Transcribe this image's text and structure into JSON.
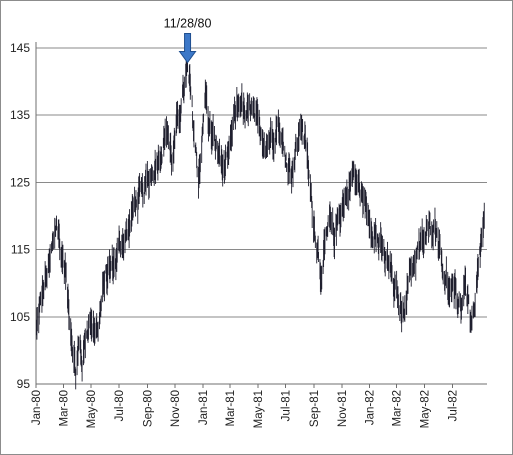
{
  "chart_data": {
    "type": "line",
    "style": "high-low bars",
    "series_color": "#1f1f2e",
    "annotation_color": "#3c78c8",
    "grid": true,
    "legend": "none",
    "y_ticks": [
      95,
      105,
      115,
      125,
      135,
      145
    ],
    "ylim": [
      95,
      145
    ],
    "x_ticks": [
      "Jan-80",
      "Mar-80",
      "May-80",
      "Jul-80",
      "Sep-80",
      "Nov-80",
      "Jan-81",
      "Mar-81",
      "May-81",
      "Jul-81",
      "Sep-81",
      "Nov-81",
      "Jan-82",
      "Mar-82",
      "May-82",
      "Jul-82"
    ],
    "x_range": [
      "1980-01-01",
      "1982-09-15"
    ],
    "annotations": [
      {
        "label": "11/28/80",
        "date": "1980-11-28",
        "value": 141.5
      }
    ],
    "points": [
      [
        "1980-01-02",
        103.0
      ],
      [
        "1980-01-10",
        106.5
      ],
      [
        "1980-01-20",
        110.0
      ],
      [
        "1980-02-01",
        113.0
      ],
      [
        "1980-02-10",
        117.0
      ],
      [
        "1980-02-15",
        119.5
      ],
      [
        "1980-02-25",
        114.5
      ],
      [
        "1980-03-05",
        112.0
      ],
      [
        "1980-03-10",
        108.0
      ],
      [
        "1980-03-15",
        105.0
      ],
      [
        "1980-03-22",
        100.5
      ],
      [
        "1980-03-28",
        96.5
      ],
      [
        "1980-04-05",
        101.0
      ],
      [
        "1980-04-12",
        98.0
      ],
      [
        "1980-04-20",
        103.0
      ],
      [
        "1980-05-01",
        104.5
      ],
      [
        "1980-05-15",
        103.0
      ],
      [
        "1980-06-01",
        111.0
      ],
      [
        "1980-06-20",
        113.0
      ],
      [
        "1980-07-05",
        116.0
      ],
      [
        "1980-07-20",
        117.5
      ],
      [
        "1980-08-05",
        122.0
      ],
      [
        "1980-08-20",
        123.0
      ],
      [
        "1980-09-05",
        125.5
      ],
      [
        "1980-09-20",
        128.0
      ],
      [
        "1980-10-05",
        130.5
      ],
      [
        "1980-10-15",
        133.0
      ],
      [
        "1980-10-25",
        128.0
      ],
      [
        "1980-11-05",
        133.5
      ],
      [
        "1980-11-15",
        137.0
      ],
      [
        "1980-11-28",
        141.5
      ],
      [
        "1980-12-05",
        138.0
      ],
      [
        "1980-12-15",
        130.0
      ],
      [
        "1980-12-22",
        126.0
      ],
      [
        "1981-01-01",
        133.0
      ],
      [
        "1981-01-06",
        138.5
      ],
      [
        "1981-01-15",
        133.0
      ],
      [
        "1981-01-25",
        131.0
      ],
      [
        "1981-02-05",
        129.0
      ],
      [
        "1981-02-15",
        127.0
      ],
      [
        "1981-02-25",
        127.5
      ],
      [
        "1981-03-05",
        132.0
      ],
      [
        "1981-03-15",
        136.0
      ],
      [
        "1981-03-25",
        137.5
      ],
      [
        "1981-04-05",
        134.0
      ],
      [
        "1981-04-15",
        136.0
      ],
      [
        "1981-04-25",
        134.5
      ],
      [
        "1981-05-05",
        132.5
      ],
      [
        "1981-05-20",
        131.0
      ],
      [
        "1981-06-05",
        132.5
      ],
      [
        "1981-06-15",
        134.0
      ],
      [
        "1981-06-25",
        130.0
      ],
      [
        "1981-07-05",
        128.0
      ],
      [
        "1981-07-15",
        127.0
      ],
      [
        "1981-07-25",
        130.0
      ],
      [
        "1981-08-05",
        134.0
      ],
      [
        "1981-08-15",
        130.0
      ],
      [
        "1981-08-25",
        123.0
      ],
      [
        "1981-09-01",
        119.0
      ],
      [
        "1981-09-10",
        115.0
      ],
      [
        "1981-09-18",
        111.0
      ],
      [
        "1981-09-25",
        115.0
      ],
      [
        "1981-10-05",
        119.0
      ],
      [
        "1981-10-15",
        117.0
      ],
      [
        "1981-10-25",
        120.0
      ],
      [
        "1981-11-05",
        122.0
      ],
      [
        "1981-11-15",
        124.0
      ],
      [
        "1981-11-25",
        126.0
      ],
      [
        "1981-12-05",
        125.0
      ],
      [
        "1981-12-20",
        122.0
      ],
      [
        "1982-01-05",
        119.0
      ],
      [
        "1982-01-20",
        116.0
      ],
      [
        "1982-02-01",
        114.0
      ],
      [
        "1982-02-15",
        112.0
      ],
      [
        "1982-03-01",
        108.0
      ],
      [
        "1982-03-15",
        105.5
      ],
      [
        "1982-03-25",
        110.0
      ],
      [
        "1982-04-05",
        113.0
      ],
      [
        "1982-04-20",
        115.0
      ],
      [
        "1982-05-05",
        117.0
      ],
      [
        "1982-05-20",
        119.0
      ],
      [
        "1982-05-30",
        117.5
      ],
      [
        "1982-06-10",
        112.5
      ],
      [
        "1982-06-25",
        108.5
      ],
      [
        "1982-07-10",
        108.0
      ],
      [
        "1982-07-20",
        106.5
      ],
      [
        "1982-07-30",
        110.5
      ],
      [
        "1982-08-05",
        107.0
      ],
      [
        "1982-08-12",
        103.0
      ],
      [
        "1982-08-20",
        105.5
      ],
      [
        "1982-08-28",
        113.0
      ],
      [
        "1982-09-05",
        117.5
      ],
      [
        "1982-09-10",
        119.0
      ]
    ]
  }
}
